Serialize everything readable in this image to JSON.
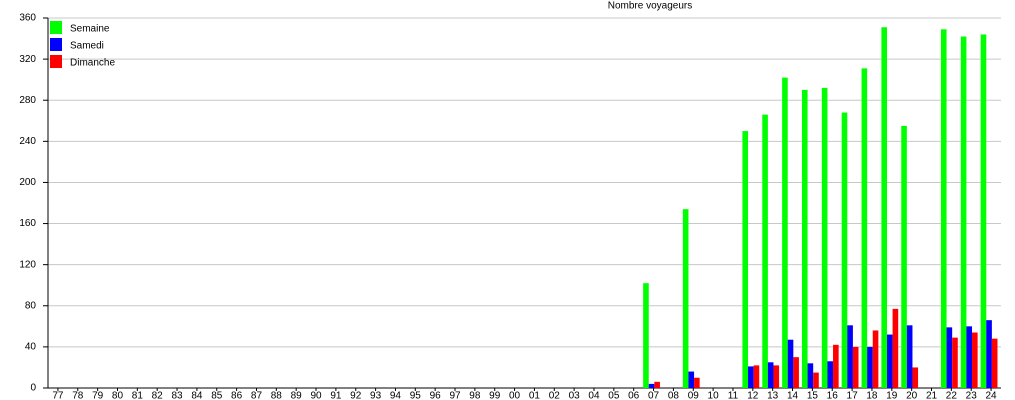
{
  "chart_data": {
    "type": "bar",
    "title": "Nombre voyageurs",
    "categories": [
      "77",
      "78",
      "79",
      "80",
      "81",
      "82",
      "83",
      "84",
      "85",
      "86",
      "87",
      "88",
      "89",
      "90",
      "91",
      "92",
      "93",
      "94",
      "95",
      "96",
      "97",
      "98",
      "99",
      "00",
      "01",
      "02",
      "03",
      "04",
      "05",
      "06",
      "07",
      "08",
      "09",
      "10",
      "11",
      "12",
      "13",
      "14",
      "15",
      "16",
      "17",
      "18",
      "19",
      "20",
      "21",
      "22",
      "23",
      "24"
    ],
    "series": [
      {
        "name": "Semaine",
        "color": "#00ff00",
        "values": [
          null,
          null,
          null,
          null,
          null,
          null,
          null,
          null,
          null,
          null,
          null,
          null,
          null,
          null,
          null,
          null,
          null,
          null,
          null,
          null,
          null,
          null,
          null,
          null,
          null,
          null,
          null,
          null,
          null,
          null,
          102,
          null,
          174,
          null,
          null,
          250,
          266,
          302,
          290,
          292,
          268,
          311,
          351,
          255,
          null,
          349,
          342,
          344
        ]
      },
      {
        "name": "Samedi",
        "color": "#0000ff",
        "values": [
          null,
          null,
          null,
          null,
          null,
          null,
          null,
          null,
          null,
          null,
          null,
          null,
          null,
          null,
          null,
          null,
          null,
          null,
          null,
          null,
          null,
          null,
          null,
          null,
          null,
          null,
          null,
          null,
          null,
          null,
          4,
          null,
          16,
          null,
          null,
          21,
          25,
          47,
          24,
          26,
          61,
          40,
          52,
          61,
          null,
          59,
          60,
          66
        ]
      },
      {
        "name": "Dimanche",
        "color": "#ff0000",
        "values": [
          null,
          null,
          null,
          null,
          null,
          null,
          null,
          null,
          null,
          null,
          null,
          null,
          null,
          null,
          null,
          null,
          null,
          null,
          null,
          null,
          null,
          null,
          null,
          null,
          null,
          null,
          null,
          null,
          null,
          null,
          6,
          null,
          10,
          null,
          null,
          22,
          22,
          30,
          15,
          42,
          40,
          56,
          77,
          20,
          null,
          49,
          54,
          48
        ]
      }
    ],
    "ylim": [
      0,
      360
    ],
    "yticks": [
      0,
      40,
      80,
      120,
      160,
      200,
      240,
      280,
      320,
      360
    ],
    "grid": true,
    "legend": "top-left"
  }
}
